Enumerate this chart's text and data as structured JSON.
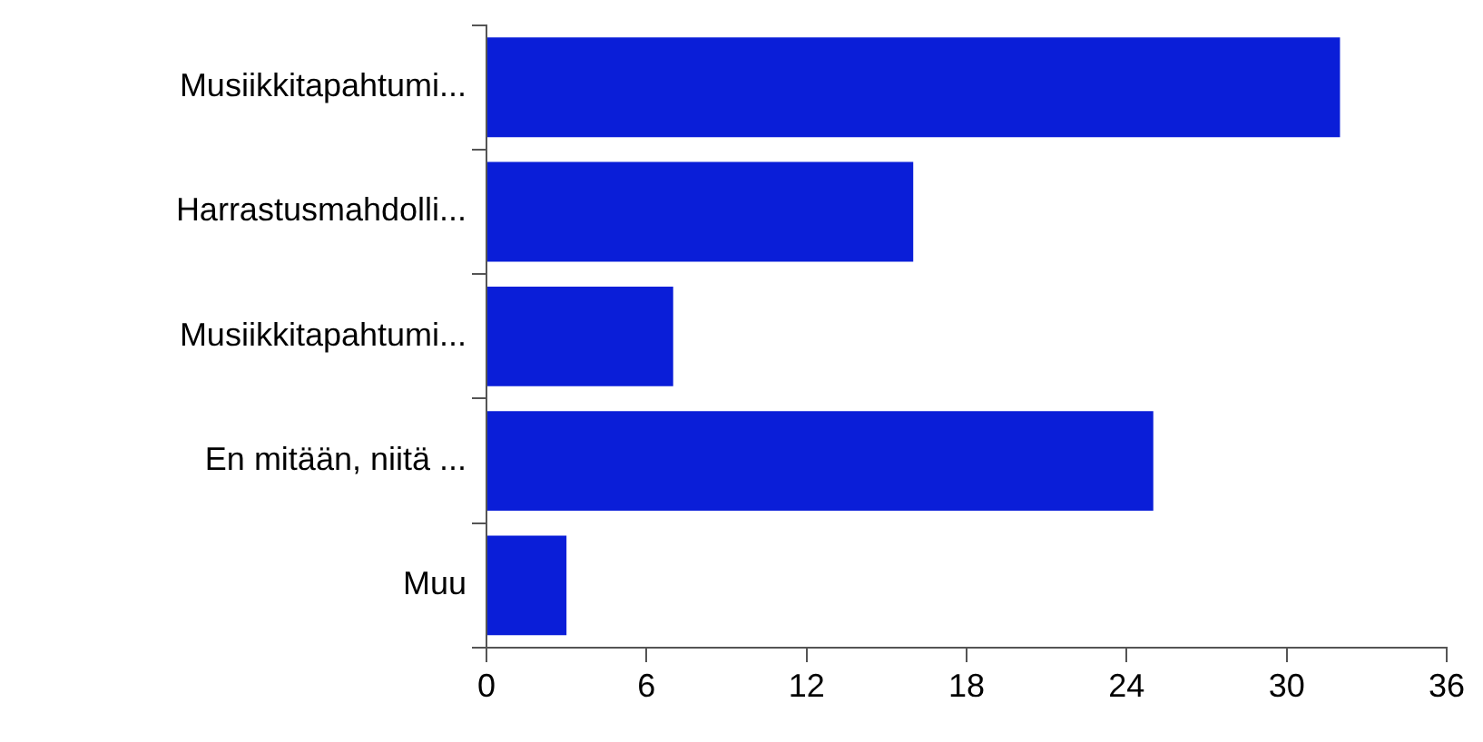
{
  "chart_data": {
    "type": "bar",
    "orientation": "horizontal",
    "categories": [
      "Musiikkitapahtumi...",
      "Harrastusmahdolli...",
      "Musiikkitapahtumi...",
      "En mitään, niitä ...",
      "Muu"
    ],
    "values": [
      32,
      16,
      7,
      25,
      3
    ],
    "color": "#0a1ed8",
    "xlim": [
      0,
      36
    ],
    "xticks": [
      0,
      6,
      12,
      18,
      24,
      30,
      36
    ],
    "grid": false,
    "legend": false
  }
}
